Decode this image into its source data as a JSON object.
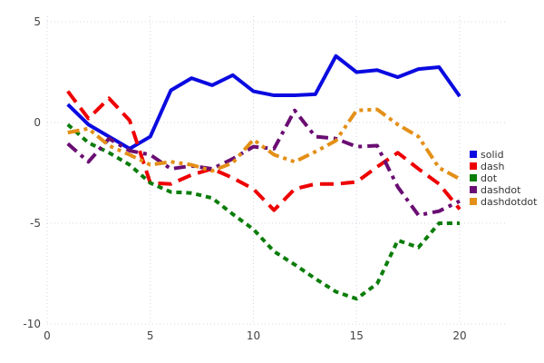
{
  "chart_data": {
    "type": "line",
    "title": "",
    "xlabel": "",
    "ylabel": "",
    "x": [
      1,
      2,
      3,
      4,
      5,
      6,
      7,
      8,
      9,
      10,
      11,
      12,
      13,
      14,
      15,
      16,
      17,
      18,
      19,
      20
    ],
    "x_ticks": [
      0,
      5,
      10,
      15,
      20
    ],
    "y_ticks": [
      5,
      0,
      -5,
      -10
    ],
    "x_tick_labels": [
      "0",
      "5",
      "10",
      "15",
      "20"
    ],
    "y_tick_labels": [
      "5",
      "0",
      "-5",
      "-10"
    ],
    "xlim": [
      0,
      20.5
    ],
    "ylim": [
      -10.5,
      5.5
    ],
    "grid": "dotted",
    "legend_position": "right",
    "series": [
      {
        "name": "solid",
        "line_style": "solid",
        "color": "#0a0ae0",
        "values": [
          0.9,
          -0.1,
          -0.7,
          -1.3,
          -0.7,
          1.6,
          2.2,
          1.85,
          2.35,
          1.55,
          1.35,
          1.35,
          1.4,
          3.3,
          2.5,
          2.6,
          2.25,
          2.65,
          2.75,
          1.3
        ]
      },
      {
        "name": "dash",
        "line_style": "dash",
        "color": "#ee0000",
        "values": [
          1.55,
          0.2,
          1.2,
          0.1,
          -3.0,
          -3.05,
          -2.6,
          -2.3,
          -2.75,
          -3.3,
          -4.35,
          -3.3,
          -3.05,
          -3.05,
          -2.95,
          -2.2,
          -1.5,
          -2.3,
          -3.05,
          -4.3
        ]
      },
      {
        "name": "dot",
        "line_style": "dot",
        "color": "#0a7d0a",
        "values": [
          -0.1,
          -1.0,
          -1.5,
          -2.1,
          -3.0,
          -3.45,
          -3.5,
          -3.75,
          -4.55,
          -5.3,
          -6.4,
          -7.05,
          -7.75,
          -8.4,
          -8.75,
          -8.0,
          -5.85,
          -6.2,
          -5.0,
          -5.0
        ]
      },
      {
        "name": "dashdot",
        "line_style": "dashdot",
        "color": "#6a0d73",
        "values": [
          -1.05,
          -1.95,
          -0.8,
          -1.4,
          -1.6,
          -2.3,
          -2.15,
          -2.3,
          -1.8,
          -1.2,
          -1.3,
          0.6,
          -0.7,
          -0.8,
          -1.2,
          -1.15,
          -3.2,
          -4.6,
          -4.4,
          -3.9
        ]
      },
      {
        "name": "dashdotdot",
        "line_style": "dashdotdot",
        "color": "#e48f17",
        "values": [
          -0.5,
          -0.3,
          -1.15,
          -1.6,
          -2.1,
          -1.95,
          -2.1,
          -2.4,
          -2.0,
          -0.85,
          -1.6,
          -1.95,
          -1.45,
          -0.9,
          0.6,
          0.65,
          -0.1,
          -0.7,
          -2.25,
          -2.8
        ]
      }
    ],
    "legend": {
      "items": [
        "solid",
        "dash",
        "dot",
        "dashdot",
        "dashdotdot"
      ]
    },
    "colors": {
      "background": "#ffffff",
      "grid": "#d4d4e4",
      "tick_text": "#444444",
      "legend_text": "#333333"
    }
  }
}
